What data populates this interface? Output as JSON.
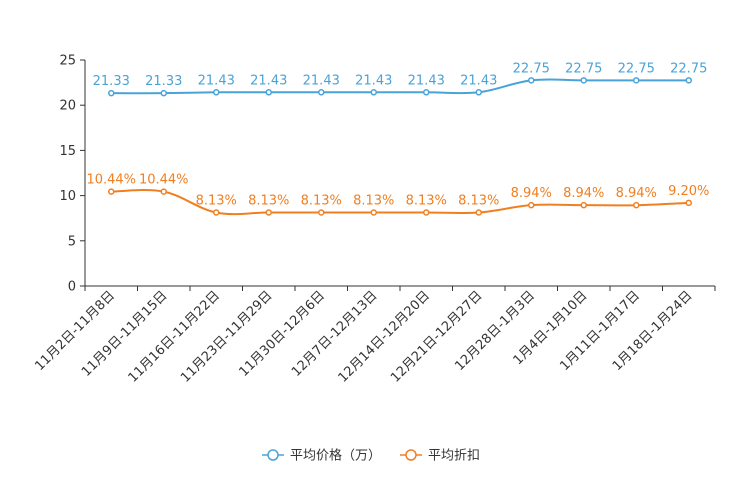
{
  "chart_data": {
    "type": "line",
    "title": "",
    "xlabel": "",
    "ylabel": "",
    "ylim": [
      0,
      25
    ],
    "yticks": [
      0,
      5,
      10,
      15,
      20,
      25
    ],
    "grid": false,
    "legend_position": "bottom",
    "categories": [
      "11月2日-11月8日",
      "11月9日-11月15日",
      "11月16日-11月22日",
      "11月23日-11月29日",
      "11月30日-12月6日",
      "12月7日-12月13日",
      "12月14日-12月20日",
      "12月21日-12月27日",
      "12月28日-1月3日",
      "1月4日-1月10日",
      "1月11日-1月17日",
      "1月18日-1月24日"
    ],
    "series": [
      {
        "name": "平均价格（万）",
        "color": "#4aa3d8",
        "values": [
          21.33,
          21.33,
          21.43,
          21.43,
          21.43,
          21.43,
          21.43,
          21.43,
          22.75,
          22.75,
          22.75,
          22.75
        ],
        "labels": [
          "21.33",
          "21.33",
          "21.43",
          "21.43",
          "21.43",
          "21.43",
          "21.43",
          "21.43",
          "22.75",
          "22.75",
          "22.75",
          "22.75"
        ]
      },
      {
        "name": "平均折扣",
        "color": "#f07f20",
        "values": [
          10.44,
          10.44,
          8.13,
          8.13,
          8.13,
          8.13,
          8.13,
          8.13,
          8.94,
          8.94,
          8.94,
          9.2
        ],
        "labels": [
          "10.44%",
          "10.44%",
          "8.13%",
          "8.13%",
          "8.13%",
          "8.13%",
          "8.13%",
          "8.13%",
          "8.94%",
          "8.94%",
          "8.94%",
          "9.20%"
        ]
      }
    ]
  }
}
